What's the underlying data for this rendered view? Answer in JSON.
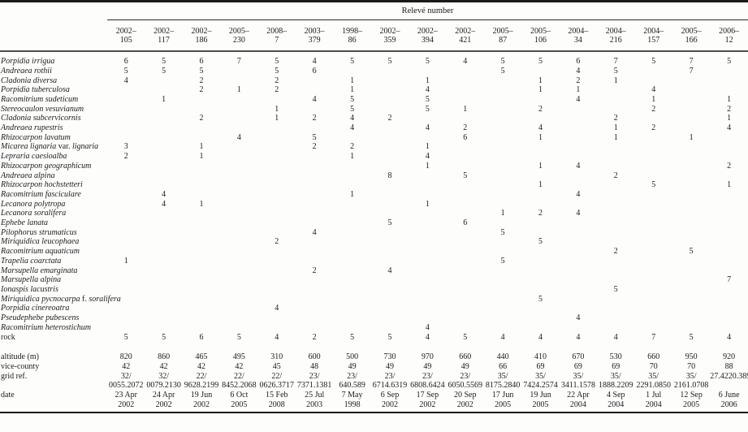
{
  "table": {
    "group_header": "Relevé number",
    "columns": [
      {
        "line1": "2002–",
        "line2": "105"
      },
      {
        "line1": "2002–",
        "line2": "117"
      },
      {
        "line1": "2002–",
        "line2": "186"
      },
      {
        "line1": "2005–",
        "line2": "230"
      },
      {
        "line1": "2008–",
        "line2": "7"
      },
      {
        "line1": "2003–",
        "line2": "379"
      },
      {
        "line1": "1998–",
        "line2": "86"
      },
      {
        "line1": "2002–",
        "line2": "359"
      },
      {
        "line1": "2002–",
        "line2": "394"
      },
      {
        "line1": "2002–",
        "line2": "421"
      },
      {
        "line1": "2005–",
        "line2": "87"
      },
      {
        "line1": "2005–",
        "line2": "106"
      },
      {
        "line1": "2004–",
        "line2": "34"
      },
      {
        "line1": "2004–",
        "line2": "216"
      },
      {
        "line1": "2004–",
        "line2": "157"
      },
      {
        "line1": "2005–",
        "line2": "166"
      },
      {
        "line1": "2006–",
        "line2": "12"
      }
    ],
    "species_rows": [
      {
        "name": [
          {
            "text": "Porpidia irrigua",
            "italic": true
          }
        ],
        "values": [
          "6",
          "5",
          "6",
          "7",
          "5",
          "4",
          "5",
          "5",
          "5",
          "4",
          "5",
          "5",
          "6",
          "7",
          "5",
          "7",
          "5"
        ]
      },
      {
        "name": [
          {
            "text": "Andreaea rothii",
            "italic": true
          }
        ],
        "values": [
          "5",
          "5",
          "5",
          "",
          "5",
          "6",
          "",
          "",
          "",
          "",
          "5",
          "",
          "4",
          "5",
          "",
          "7",
          ""
        ]
      },
      {
        "name": [
          {
            "text": "Cladonia diversa",
            "italic": true
          }
        ],
        "values": [
          "4",
          "",
          "2",
          "",
          "2",
          "",
          "1",
          "",
          "1",
          "",
          "",
          "1",
          "2",
          "1",
          "",
          "",
          ""
        ]
      },
      {
        "name": [
          {
            "text": "Porpidia tuberculosa",
            "italic": true
          }
        ],
        "values": [
          "",
          "",
          "2",
          "1",
          "2",
          "",
          "1",
          "",
          "4",
          "",
          "",
          "1",
          "1",
          "",
          "4",
          "",
          ""
        ]
      },
      {
        "name": [
          {
            "text": "Racomitrium sudeticum",
            "italic": true
          }
        ],
        "values": [
          "",
          "1",
          "",
          "",
          "",
          "4",
          "5",
          "",
          "5",
          "",
          "",
          "",
          "4",
          "",
          "1",
          "",
          "1"
        ]
      },
      {
        "name": [
          {
            "text": "Stereocaulon vesuvianum",
            "italic": true
          }
        ],
        "values": [
          "",
          "",
          "",
          "",
          "1",
          "",
          "5",
          "",
          "5",
          "1",
          "",
          "2",
          "",
          "",
          "2",
          "",
          "2"
        ]
      },
      {
        "name": [
          {
            "text": "Cladonia subcervicornis",
            "italic": true
          }
        ],
        "values": [
          "",
          "",
          "2",
          "",
          "1",
          "2",
          "4",
          "2",
          "",
          "",
          "",
          "",
          "",
          "2",
          "",
          "",
          "1"
        ]
      },
      {
        "name": [
          {
            "text": "Andreaea rupestris",
            "italic": true
          }
        ],
        "values": [
          "",
          "",
          "",
          "",
          "",
          "",
          "4",
          "",
          "4",
          "2",
          "",
          "4",
          "",
          "1",
          "2",
          "",
          "4"
        ]
      },
      {
        "name": [
          {
            "text": "Rhizocarpon lavatum",
            "italic": true
          }
        ],
        "values": [
          "",
          "",
          "",
          "4",
          "",
          "5",
          "",
          "",
          "",
          "6",
          "",
          "1",
          "",
          "1",
          "",
          "1",
          ""
        ]
      },
      {
        "name": [
          {
            "text": "Micarea lignaria ",
            "italic": true
          },
          {
            "text": "var. ",
            "italic": false
          },
          {
            "text": "lignaria",
            "italic": true
          }
        ],
        "values": [
          "3",
          "",
          "1",
          "",
          "",
          "2",
          "2",
          "",
          "1",
          "",
          "",
          "",
          "",
          "",
          "",
          "",
          ""
        ]
      },
      {
        "name": [
          {
            "text": "Lepraria caesioalba",
            "italic": true
          }
        ],
        "values": [
          "2",
          "",
          "1",
          "",
          "",
          "",
          "1",
          "",
          "4",
          "",
          "",
          "",
          "",
          "",
          "",
          "",
          ""
        ]
      },
      {
        "name": [
          {
            "text": "Rhizocarpon geographicum",
            "italic": true
          }
        ],
        "values": [
          "",
          "",
          "",
          "",
          "",
          "",
          "",
          "",
          "1",
          "",
          "",
          "1",
          "4",
          "",
          "",
          "",
          "2"
        ]
      },
      {
        "name": [
          {
            "text": "Andreaea alpina",
            "italic": true
          }
        ],
        "values": [
          "",
          "",
          "",
          "",
          "",
          "",
          "",
          "8",
          "",
          "5",
          "",
          "",
          "",
          "2",
          "",
          "",
          ""
        ]
      },
      {
        "name": [
          {
            "text": "Rhizocarpon hochstetteri",
            "italic": true
          }
        ],
        "values": [
          "",
          "",
          "",
          "",
          "",
          "",
          "",
          "",
          "",
          "",
          "",
          "1",
          "",
          "",
          "5",
          "",
          "1"
        ]
      },
      {
        "name": [
          {
            "text": "Racomitrium fasciculare",
            "italic": true
          }
        ],
        "values": [
          "",
          "4",
          "",
          "",
          "",
          "",
          "1",
          "",
          "",
          "",
          "",
          "",
          "4",
          "",
          "",
          "",
          ""
        ]
      },
      {
        "name": [
          {
            "text": "Lecanora polytropa",
            "italic": true
          }
        ],
        "values": [
          "",
          "4",
          "1",
          "",
          "",
          "",
          "",
          "",
          "1",
          "",
          "",
          "",
          "",
          "",
          "",
          "",
          ""
        ]
      },
      {
        "name": [
          {
            "text": "Lecanora soralifera",
            "italic": true
          }
        ],
        "values": [
          "",
          "",
          "",
          "",
          "",
          "",
          "",
          "",
          "",
          "",
          "1",
          "2",
          "4",
          "",
          "",
          "",
          ""
        ]
      },
      {
        "name": [
          {
            "text": "Ephebe lanata",
            "italic": true
          }
        ],
        "values": [
          "",
          "",
          "",
          "",
          "",
          "",
          "",
          "5",
          "",
          "6",
          "",
          "",
          "",
          "",
          "",
          "",
          ""
        ]
      },
      {
        "name": [
          {
            "text": "Pilophorus strumaticus",
            "italic": true
          }
        ],
        "values": [
          "",
          "",
          "",
          "",
          "",
          "4",
          "",
          "",
          "",
          "",
          "5",
          "",
          "",
          "",
          "",
          "",
          ""
        ]
      },
      {
        "name": [
          {
            "text": "Miriquidica leucophaea",
            "italic": true
          }
        ],
        "values": [
          "",
          "",
          "",
          "",
          "2",
          "",
          "",
          "",
          "",
          "",
          "",
          "5",
          "",
          "",
          "",
          "",
          ""
        ]
      },
      {
        "name": [
          {
            "text": "Racomitrium aquaticum",
            "italic": true
          }
        ],
        "values": [
          "",
          "",
          "",
          "",
          "",
          "",
          "",
          "",
          "",
          "",
          "",
          "",
          "",
          "2",
          "",
          "5",
          ""
        ]
      },
      {
        "name": [
          {
            "text": "Trapelia coarctata",
            "italic": true
          }
        ],
        "values": [
          "1",
          "",
          "",
          "",
          "",
          "",
          "",
          "",
          "",
          "",
          "5",
          "",
          "",
          "",
          "",
          "",
          ""
        ]
      },
      {
        "name": [
          {
            "text": "Marsupella emarginata",
            "italic": true
          }
        ],
        "values": [
          "",
          "",
          "",
          "",
          "",
          "2",
          "",
          "4",
          "",
          "",
          "",
          "",
          "",
          "",
          "",
          "",
          ""
        ]
      },
      {
        "name": [
          {
            "text": "Marsupella alpina",
            "italic": true
          }
        ],
        "values": [
          "",
          "",
          "",
          "",
          "",
          "",
          "",
          "",
          "",
          "",
          "",
          "",
          "",
          "",
          "",
          "",
          "7"
        ]
      },
      {
        "name": [
          {
            "text": "Ionaspis lacustris",
            "italic": true
          }
        ],
        "values": [
          "",
          "",
          "",
          "",
          "",
          "",
          "",
          "",
          "",
          "",
          "",
          "",
          "",
          "5",
          "",
          "",
          ""
        ]
      },
      {
        "name": [
          {
            "text": "Miriquidica pycnocarpa ",
            "italic": true
          },
          {
            "text": "f. ",
            "italic": false
          },
          {
            "text": "soralifera",
            "italic": true
          }
        ],
        "values": [
          "",
          "",
          "",
          "",
          "",
          "",
          "",
          "",
          "",
          "",
          "",
          "5",
          "",
          "",
          "",
          "",
          ""
        ]
      },
      {
        "name": [
          {
            "text": "Porpidia cinereoatra",
            "italic": true
          }
        ],
        "values": [
          "",
          "",
          "",
          "",
          "4",
          "",
          "",
          "",
          "",
          "",
          "",
          "",
          "",
          "",
          "",
          "",
          ""
        ]
      },
      {
        "name": [
          {
            "text": "Pseudephebe pubescens",
            "italic": true
          }
        ],
        "values": [
          "",
          "",
          "",
          "",
          "",
          "",
          "",
          "",
          "",
          "",
          "",
          "",
          "4",
          "",
          "",
          "",
          ""
        ]
      },
      {
        "name": [
          {
            "text": "Racomitrium heterostichum",
            "italic": true
          }
        ],
        "values": [
          "",
          "",
          "",
          "",
          "",
          "",
          "",
          "",
          "4",
          "",
          "",
          "",
          "",
          "",
          "",
          "",
          ""
        ]
      },
      {
        "name": [
          {
            "text": "rock",
            "italic": false
          }
        ],
        "values": [
          "5",
          "5",
          "6",
          "5",
          "4",
          "2",
          "5",
          "5",
          "4",
          "5",
          "4",
          "4",
          "4",
          "4",
          "7",
          "5",
          "4"
        ]
      }
    ],
    "info_rows": [
      {
        "label": "altitude (m)",
        "values": [
          [
            "820"
          ],
          [
            "860"
          ],
          [
            "465"
          ],
          [
            "495"
          ],
          [
            "310"
          ],
          [
            "600"
          ],
          [
            "500"
          ],
          [
            "730"
          ],
          [
            "970"
          ],
          [
            "660"
          ],
          [
            "440"
          ],
          [
            "410"
          ],
          [
            "670"
          ],
          [
            "530"
          ],
          [
            "660"
          ],
          [
            "950"
          ],
          [
            "920"
          ]
        ]
      },
      {
        "label": "vice-county",
        "values": [
          [
            "42"
          ],
          [
            "42"
          ],
          [
            "42"
          ],
          [
            "42"
          ],
          [
            "45"
          ],
          [
            "48"
          ],
          [
            "49"
          ],
          [
            "49"
          ],
          [
            "49"
          ],
          [
            "49"
          ],
          [
            "66"
          ],
          [
            "69"
          ],
          [
            "69"
          ],
          [
            "69"
          ],
          [
            "70"
          ],
          [
            "70"
          ],
          [
            "88"
          ]
        ]
      },
      {
        "label": "grid ref.",
        "values": [
          [
            "32/",
            "0055.2072"
          ],
          [
            "32/",
            "0079.2130"
          ],
          [
            "22/",
            "9628.2199"
          ],
          [
            "22/",
            "8452.2068"
          ],
          [
            "22/",
            "0626.3717"
          ],
          [
            "23/",
            "7371.1381"
          ],
          [
            "23/",
            "640.589"
          ],
          [
            "23/",
            "6714.6319"
          ],
          [
            "23/",
            "6808.6424"
          ],
          [
            "23/",
            "6050.5569"
          ],
          [
            "35/",
            "8175.2840"
          ],
          [
            "35/",
            "7424.2574"
          ],
          [
            "35/",
            "3411.1578"
          ],
          [
            "35/",
            "1888.2209"
          ],
          [
            "35/",
            "2291.0850"
          ],
          [
            "35/",
            "2161.0708"
          ],
          [
            "27.4220.3891"
          ]
        ]
      },
      {
        "label": "date",
        "values": [
          [
            "23 Apr",
            "2002"
          ],
          [
            "24 Apr",
            "2002"
          ],
          [
            "19 Jun",
            "2002"
          ],
          [
            "6 Oct",
            "2005"
          ],
          [
            "15 Feb",
            "2008"
          ],
          [
            "25 Jul",
            "2003"
          ],
          [
            "7 May",
            "1998"
          ],
          [
            "6 Sep",
            "2002"
          ],
          [
            "17 Sep",
            "2002"
          ],
          [
            "20 Sep",
            "2002"
          ],
          [
            "17 Jun",
            "2005"
          ],
          [
            "19 Jun",
            "2005"
          ],
          [
            "22 Apr",
            "2004"
          ],
          [
            "4 Sep",
            "2004"
          ],
          [
            "1 Jul",
            "2004"
          ],
          [
            "12 Sep",
            "2005"
          ],
          [
            "6 June",
            "2006"
          ]
        ]
      }
    ]
  }
}
